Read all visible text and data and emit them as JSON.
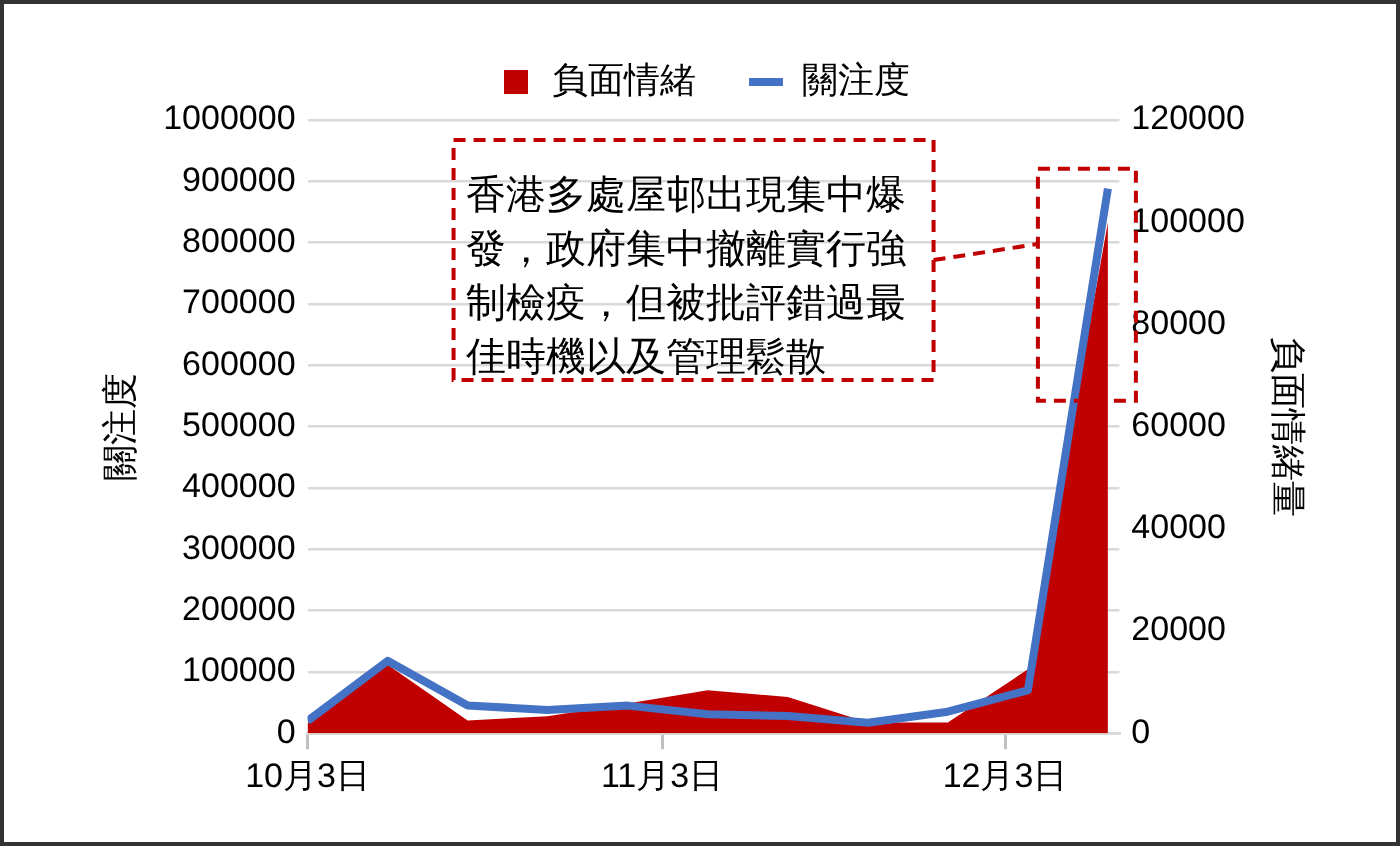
{
  "chart_data": {
    "type": "line",
    "xlabel": null,
    "ylabel": "關注度",
    "y2label": "負面情緒量",
    "x": [
      "--10-03",
      "--10-10",
      "--10-17",
      "--10-24",
      "--10-31",
      "--11-07",
      "--11-14",
      "--11-21",
      "--11-28",
      "--12-05",
      "--12-12"
    ],
    "xlim": [
      "--10-03",
      "--12-13"
    ],
    "xticks": [
      {
        "value": "--10-03",
        "label": "10月3日"
      },
      {
        "value": "--11-03",
        "label": "11月3日"
      },
      {
        "value": "--12-03",
        "label": "12月3日"
      }
    ],
    "series": [
      {
        "name": "負面情緒",
        "type": "area",
        "axis": "y2",
        "color": "#c00000",
        "values": [
          2000,
          13400,
          2500,
          3300,
          5800,
          8400,
          7100,
          2100,
          2100,
          12500,
          100000
        ]
      },
      {
        "name": "關注度",
        "type": "line",
        "color": "#4472c4",
        "values": [
          20000,
          118000,
          45000,
          38000,
          45000,
          31000,
          28000,
          17000,
          35000,
          70000,
          888000
        ]
      }
    ],
    "ylim": [
      0,
      1000000
    ],
    "yticks": [
      0,
      100000,
      200000,
      300000,
      400000,
      500000,
      600000,
      700000,
      800000,
      900000,
      1000000
    ],
    "y2lim": [
      0,
      120000
    ],
    "y2ticks": [
      0,
      20000,
      40000,
      60000,
      80000,
      100000,
      120000
    ],
    "grid": "y",
    "legend": "top",
    "marker": "none",
    "line_style": "solid",
    "annotations": [
      "香港多處屋邨出現集中爆發，政府集中撤離實行強制檢疫，但被批評錯過最佳時機以及管理鬆散"
    ]
  }
}
